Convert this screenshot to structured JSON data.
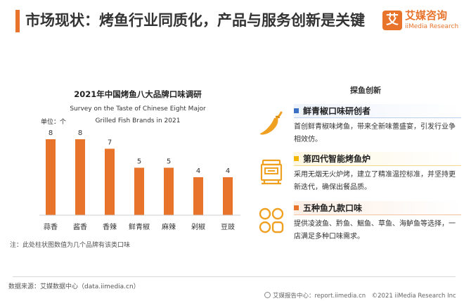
{
  "header": {
    "title": "市场现状：烤鱼行业同质化，产品与服务创新是关键",
    "logo_cn": "艾媒咨询",
    "logo_en": "iiMedia Research",
    "logo_mark": "艾"
  },
  "chart_data": {
    "type": "bar",
    "title": "2021年中国烤鱼八大品牌口味调研",
    "subtitle_line1": "Survey on the Taste of Chinese Eight Major",
    "subtitle_line2": "Grilled Fish Brands in 2021",
    "unit_label": "单位：个",
    "categories": [
      "蒜香",
      "酱香",
      "香辣",
      "鲜青椒",
      "麻辣",
      "剁椒",
      "豆豉"
    ],
    "values": [
      8,
      8,
      7,
      5,
      5,
      4,
      4
    ],
    "ylim": [
      0,
      8
    ],
    "bar_color": "#e8742c",
    "grid": false
  },
  "note": "注：此处柱状图数值为几个品牌有该类口味",
  "source": "数据来源：艾媒数据中心（data.iimedia.cn）",
  "footer": "艾媒报告中心：report.iimedia.cn　©2021  iiMedia Research  Inc",
  "panel": {
    "title": "探鱼创新",
    "items": [
      {
        "title": "鲜青椒口味研创者",
        "desc": "首创鲜青椒味烤鱼，带来全新味蕾盛宴，引发行业争相效仿。",
        "square_color": "#3a6fc4",
        "icon": "chili-pepper-icon"
      },
      {
        "title": "第四代智能烤鱼炉",
        "desc": "采用无烟无火炉烤，建立了精准温控标准，并坚持更新迭代，确保出餐品质。",
        "square_color": "#f2b600",
        "icon": "grill-stove-icon"
      },
      {
        "title": "五种鱼九款口味",
        "desc": "提供凌波鱼、黔鱼、鮰鱼、草鱼、海鲈鱼等选择，一店满足多种口味需求。",
        "square_color": "#e8742c",
        "icon": "grid-circles-icon"
      }
    ]
  },
  "colors": {
    "accent": "#e8742c",
    "icon_orange": "#f0a020"
  }
}
